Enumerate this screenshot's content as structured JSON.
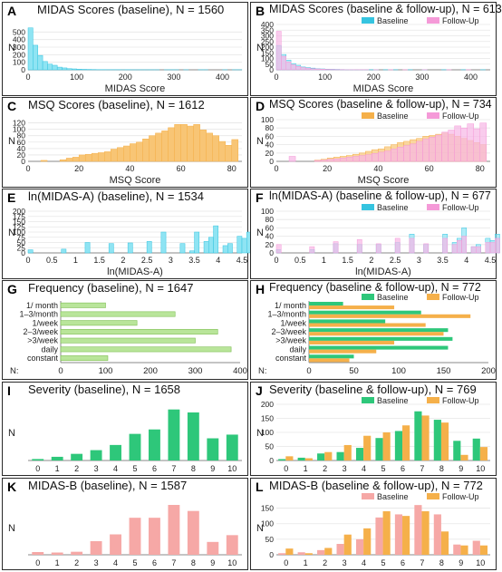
{
  "colors": {
    "blue": "#35c4e0",
    "blue_fill": "#8fe4f3",
    "pink": "#f59ad8",
    "pink_fill": "#f7b6e6",
    "orange": "#f5b04a",
    "orange_fill": "#f8c575",
    "green": "#2ec77a",
    "lightgreen": "#b9e59a",
    "salmon": "#f6a8a6"
  },
  "panels": [
    {
      "id": "A",
      "label": "A",
      "title": "MIDAS Scores (baseline), N = 1560",
      "chart_data": {
        "type": "bar",
        "xlabel": "MIDAS Score",
        "ylabel": "N",
        "xlim": [
          0,
          440
        ],
        "ylim": [
          0,
          600
        ],
        "xticks": [
          0,
          100,
          200,
          300,
          400
        ],
        "yticks": [
          0,
          100,
          200,
          300,
          400,
          500
        ],
        "bin_width": 10,
        "series": [
          {
            "color": "blue",
            "values": [
              555,
              325,
              190,
              110,
              75,
              60,
              35,
              25,
              15,
              12,
              8,
              6,
              5,
              4,
              3,
              3,
              2,
              2,
              2,
              1,
              2,
              1,
              1,
              1,
              1,
              1,
              1,
              0,
              1,
              1,
              1,
              0,
              1,
              0,
              0,
              1,
              1,
              0,
              0,
              0,
              1,
              0,
              1,
              1
            ]
          }
        ]
      }
    },
    {
      "id": "B",
      "label": "B",
      "title": "MIDAS Scores (baseline & follow-up), N = 613",
      "chart_data": {
        "type": "bar",
        "xlabel": "MIDAS Score",
        "ylabel": "N",
        "xlim": [
          0,
          440
        ],
        "ylim": [
          0,
          400
        ],
        "xticks": [
          0,
          100,
          200,
          300,
          400
        ],
        "yticks": [
          0,
          50,
          100,
          150,
          200,
          250,
          300,
          350,
          400
        ],
        "bin_width": 10,
        "legend": [
          "Baseline",
          "Follow-Up"
        ],
        "series": [
          {
            "name": "Baseline",
            "color": "blue",
            "values": [
              215,
              135,
              85,
              55,
              40,
              25,
              20,
              15,
              10,
              8,
              6,
              5,
              4,
              3,
              2,
              2,
              1,
              1,
              1,
              1,
              1,
              0,
              1,
              0,
              1,
              0,
              0,
              1,
              0,
              0,
              1,
              0,
              0,
              0,
              1,
              0,
              0,
              0,
              1,
              0,
              0,
              0,
              1,
              0
            ]
          },
          {
            "name": "Follow-Up",
            "color": "pink",
            "values": [
              340,
              120,
              70,
              45,
              30,
              20,
              15,
              10,
              8,
              6,
              4,
              3,
              2,
              2,
              1,
              1,
              1,
              1,
              1,
              0,
              1,
              0,
              0,
              1,
              0,
              0,
              1,
              0,
              0,
              0,
              1,
              0,
              0,
              0,
              0,
              1,
              0,
              0,
              0,
              1,
              0,
              0,
              0,
              0
            ]
          }
        ]
      }
    },
    {
      "id": "C",
      "label": "C",
      "title": "MSQ Scores (baseline), N = 1612",
      "chart_data": {
        "type": "bar",
        "xlabel": "MSQ Score",
        "ylabel": "N",
        "xlim": [
          0,
          84
        ],
        "ylim": [
          0,
          130
        ],
        "xticks": [
          0,
          20,
          40,
          60,
          80
        ],
        "yticks": [
          0,
          20,
          40,
          60,
          80,
          100,
          120
        ],
        "bin_width": 2.5,
        "series": [
          {
            "color": "orange",
            "values": [
              0,
              0,
              3,
              0,
              0,
              5,
              10,
              13,
              20,
              22,
              25,
              27,
              30,
              38,
              43,
              48,
              55,
              60,
              70,
              80,
              88,
              95,
              105,
              115,
              115,
              110,
              115,
              98,
              88,
              80,
              62,
              50,
              68
            ]
          }
        ]
      }
    },
    {
      "id": "D",
      "label": "D",
      "title": "MSQ Scores (baseline & follow-up), N = 734",
      "chart_data": {
        "type": "bar",
        "xlabel": "MSQ Score",
        "ylabel": "N",
        "xlim": [
          0,
          84
        ],
        "ylim": [
          0,
          100
        ],
        "xticks": [
          0,
          20,
          40,
          60,
          80
        ],
        "yticks": [
          0,
          20,
          40,
          60,
          80,
          100
        ],
        "bin_width": 2.5,
        "legend": [
          "Baseline",
          "Follow-Up"
        ],
        "series": [
          {
            "name": "Baseline",
            "color": "orange",
            "values": [
              0,
              0,
              0,
              0,
              0,
              0,
              3,
              5,
              8,
              10,
              12,
              14,
              17,
              20,
              24,
              28,
              30,
              35,
              40,
              45,
              48,
              52,
              55,
              60,
              62,
              65,
              68,
              65,
              60,
              55,
              50,
              45,
              40
            ]
          },
          {
            "name": "Follow-Up",
            "color": "pink",
            "values": [
              0,
              0,
              12,
              0,
              0,
              0,
              2,
              3,
              5,
              6,
              8,
              10,
              12,
              14,
              16,
              19,
              22,
              25,
              30,
              34,
              38,
              42,
              48,
              54,
              58,
              63,
              70,
              75,
              85,
              80,
              90,
              78,
              92
            ]
          }
        ]
      }
    },
    {
      "id": "E",
      "label": "E",
      "title": "ln(MIDAS-A) (baseline), N = 1534",
      "chart_data": {
        "type": "bar",
        "xlabel": "ln(MIDAS-A)",
        "ylabel": "N",
        "xlim": [
          0,
          4.5
        ],
        "ylim": [
          0,
          200
        ],
        "xticks": [
          0,
          0.5,
          1,
          1.5,
          2,
          2.5,
          3,
          3.5,
          4,
          4.5
        ],
        "yticks": [
          0,
          25,
          50,
          75,
          100,
          125,
          150,
          175,
          200
        ],
        "bin_width": 0.1,
        "series": [
          {
            "color": "blue",
            "values": [
              15,
              0,
              0,
              0,
              0,
              0,
              0,
              18,
              0,
              0,
              0,
              0,
              50,
              0,
              0,
              0,
              0,
              45,
              0,
              0,
              0,
              48,
              0,
              0,
              0,
              55,
              0,
              0,
              100,
              0,
              0,
              0,
              45,
              0,
              10,
              100,
              0,
              55,
              75,
              130,
              0,
              35,
              45,
              0,
              80,
              70,
              100,
              0,
              40,
              90,
              100,
              0,
              55,
              0,
              115,
              60,
              0,
              40,
              70,
              0,
              0,
              150,
              0,
              0,
              0,
              45,
              40,
              120,
              0,
              185,
              150
            ]
          }
        ]
      }
    },
    {
      "id": "F",
      "label": "F",
      "title": "ln(MIDAS-A) (baseline & follow-up), N = 677",
      "chart_data": {
        "type": "bar",
        "xlabel": "ln(MIDAS-A)",
        "ylabel": "N",
        "xlim": [
          0,
          4.5
        ],
        "ylim": [
          0,
          100
        ],
        "xticks": [
          0,
          0.5,
          1,
          1.5,
          2,
          2.5,
          3,
          3.5,
          4,
          4.5
        ],
        "yticks": [
          0,
          20,
          40,
          60,
          80,
          100
        ],
        "bin_width": 0.1,
        "legend": [
          "Baseline",
          "Follow-Up"
        ],
        "series": [
          {
            "name": "Baseline",
            "color": "blue",
            "values": [
              8,
              0,
              0,
              0,
              0,
              0,
              0,
              8,
              0,
              0,
              0,
              0,
              22,
              0,
              0,
              0,
              0,
              20,
              0,
              0,
              0,
              20,
              0,
              0,
              0,
              25,
              0,
              0,
              45,
              0,
              0,
              20,
              0,
              0,
              0,
              45,
              0,
              25,
              35,
              60,
              0,
              15,
              20,
              0,
              35,
              30,
              45,
              0,
              20,
              95,
              45,
              0,
              25,
              0,
              50,
              25,
              0,
              20,
              30,
              0,
              0,
              65,
              0,
              0,
              0,
              20,
              20,
              55,
              0,
              85,
              70
            ]
          },
          {
            "name": "Follow-Up",
            "color": "pink",
            "values": [
              20,
              0,
              0,
              0,
              0,
              0,
              0,
              15,
              0,
              0,
              0,
              0,
              27,
              0,
              0,
              0,
              0,
              32,
              0,
              0,
              0,
              22,
              0,
              0,
              0,
              35,
              0,
              0,
              35,
              0,
              0,
              22,
              0,
              0,
              0,
              35,
              0,
              20,
              30,
              40,
              0,
              15,
              15,
              0,
              25,
              25,
              35,
              0,
              15,
              70,
              35,
              0,
              20,
              0,
              40,
              20,
              0,
              15,
              20,
              0,
              0,
              50,
              0,
              0,
              0,
              15,
              15,
              40,
              0,
              55,
              55
            ]
          }
        ]
      }
    },
    {
      "id": "G",
      "label": "G",
      "title": "Frequency (baseline), N = 1647",
      "chart_data": {
        "type": "bar",
        "orientation": "horizontal",
        "xlabel": "",
        "ylabel": "N:",
        "categories": [
          "1/ month",
          "1–3/month",
          "1/week",
          "2–3/week",
          ">3/week",
          "daily",
          "constant"
        ],
        "xlim": [
          0,
          400
        ],
        "xticks": [
          0,
          100,
          200,
          300,
          400
        ],
        "series": [
          {
            "color": "lightgreen",
            "values": [
              100,
              255,
              170,
              350,
              300,
              380,
              105
            ]
          }
        ]
      }
    },
    {
      "id": "H",
      "label": "H",
      "title": "Frequency (baseline & follow-up), N = 772",
      "chart_data": {
        "type": "bar",
        "orientation": "horizontal",
        "xlabel": "",
        "ylabel": "N:",
        "categories": [
          "1/ month",
          "1–3/month",
          "1/week",
          "2–3/week",
          ">3/week",
          "daily",
          "constant"
        ],
        "xlim": [
          0,
          200
        ],
        "xticks": [
          0,
          50,
          100,
          150,
          200
        ],
        "legend": [
          "Baseline",
          "Follow-Up"
        ],
        "series": [
          {
            "name": "Baseline",
            "color": "green",
            "values": [
              38,
              125,
              85,
              155,
              160,
              155,
              50
            ]
          },
          {
            "name": "Follow-Up",
            "color": "orange",
            "values": [
              95,
              180,
              130,
              150,
              95,
              75,
              45
            ]
          }
        ]
      }
    },
    {
      "id": "I",
      "label": "I",
      "title": "Severity (baseline), N = 1658",
      "chart_data": {
        "type": "bar",
        "xlabel": "",
        "ylabel": "N",
        "categories": [
          "0",
          "1",
          "2",
          "3",
          "4",
          "5",
          "6",
          "7",
          "8",
          "9",
          "10"
        ],
        "ylim": [
          0,
          380
        ],
        "series": [
          {
            "color": "green",
            "values": [
              10,
              25,
              45,
              70,
              105,
              180,
              210,
              345,
              325,
              150,
              175
            ]
          }
        ]
      }
    },
    {
      "id": "J",
      "label": "J",
      "title": "Severity (baseline & follow-up), N = 769",
      "chart_data": {
        "type": "bar",
        "xlabel": "",
        "ylabel": "N",
        "categories": [
          "0",
          "1",
          "2",
          "3",
          "4",
          "5",
          "6",
          "7",
          "8",
          "9",
          "10"
        ],
        "ylim": [
          0,
          200
        ],
        "yticks": [
          0,
          50,
          100,
          150,
          200
        ],
        "legend": [
          "Baseline",
          "Follow-Up"
        ],
        "series": [
          {
            "name": "Baseline",
            "color": "green",
            "values": [
              5,
              10,
              25,
              30,
              45,
              80,
              105,
              175,
              145,
              70,
              78
            ]
          },
          {
            "name": "Follow-Up",
            "color": "orange",
            "values": [
              15,
              8,
              30,
              55,
              88,
              100,
              125,
              160,
              135,
              20,
              48
            ]
          }
        ]
      }
    },
    {
      "id": "K",
      "label": "K",
      "title": "MIDAS-B (baseline), N = 1587",
      "chart_data": {
        "type": "bar",
        "xlabel": "",
        "ylabel": "N",
        "categories": [
          "0",
          "1",
          "2",
          "3",
          "4",
          "5",
          "6",
          "7",
          "8",
          "9",
          "10"
        ],
        "ylim": [
          0,
          360
        ],
        "series": [
          {
            "color": "salmon",
            "values": [
              18,
              15,
              20,
              90,
              135,
              245,
              245,
              330,
              290,
              85,
              130
            ]
          }
        ]
      }
    },
    {
      "id": "L",
      "label": "L",
      "title": "MIDAS-B (baseline & follow-up), N = 772",
      "chart_data": {
        "type": "bar",
        "xlabel": "",
        "ylabel": "N",
        "categories": [
          "0",
          "1",
          "2",
          "3",
          "4",
          "5",
          "6",
          "7",
          "8",
          "9",
          "10"
        ],
        "ylim": [
          0,
          175
        ],
        "yticks": [
          0,
          50,
          100,
          150
        ],
        "legend": [
          "Baseline",
          "Follow-Up"
        ],
        "series": [
          {
            "name": "Baseline",
            "color": "salmon",
            "values": [
              5,
              8,
              15,
              35,
              50,
              120,
              130,
              160,
              130,
              33,
              45
            ]
          },
          {
            "name": "Follow-Up",
            "color": "orange",
            "values": [
              20,
              5,
              22,
              65,
              85,
              140,
              125,
              140,
              75,
              30,
              30
            ]
          }
        ]
      }
    }
  ]
}
